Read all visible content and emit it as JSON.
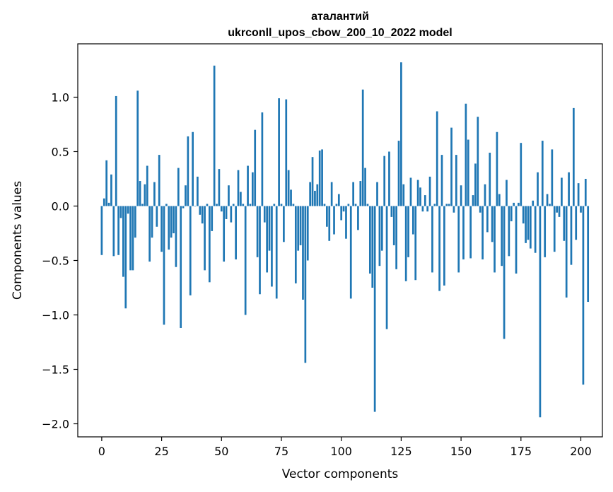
{
  "chart_data": {
    "type": "bar",
    "title": "аталантий",
    "subtitle": "ukrconll_upos_cbow_200_10_2022 model",
    "xlabel": "Vector components",
    "ylabel": "Components values",
    "xlim": [
      -10,
      209
    ],
    "ylim": [
      -2.12,
      1.49
    ],
    "x_ticks": [
      0,
      25,
      50,
      75,
      100,
      125,
      150,
      175,
      200
    ],
    "x_tick_labels": [
      "0",
      "25",
      "50",
      "75",
      "100",
      "125",
      "150",
      "175",
      "200"
    ],
    "y_ticks": [
      1.0,
      0.5,
      0.0,
      -0.5,
      -1.0,
      -1.5,
      -2.0
    ],
    "y_tick_labels": [
      "1.0",
      "0.5",
      "0.0",
      "−0.5",
      "−1.0",
      "−1.5",
      "−2.0"
    ],
    "bar_color": "#1f77b4",
    "grid": false,
    "values": [
      -0.45,
      0.07,
      0.42,
      0.03,
      0.29,
      -0.46,
      1.01,
      -0.45,
      -0.11,
      -0.65,
      -0.94,
      -0.07,
      -0.59,
      -0.59,
      -0.29,
      1.06,
      0.23,
      0.02,
      0.2,
      0.37,
      -0.51,
      -0.29,
      0.22,
      -0.19,
      0.47,
      -0.42,
      -1.09,
      0.02,
      -0.4,
      -0.29,
      -0.25,
      -0.56,
      0.35,
      -1.12,
      -0.02,
      0.19,
      0.64,
      -0.82,
      0.68,
      0.0,
      0.27,
      -0.08,
      -0.16,
      -0.59,
      0.02,
      -0.7,
      -0.23,
      1.29,
      0.02,
      0.34,
      -0.05,
      -0.51,
      -0.12,
      0.19,
      -0.15,
      0.02,
      -0.49,
      0.33,
      0.13,
      0.02,
      -1.0,
      0.37,
      0.02,
      0.31,
      0.7,
      -0.47,
      -0.81,
      0.86,
      -0.15,
      -0.61,
      -0.41,
      -0.74,
      0.02,
      -0.85,
      0.99,
      0.02,
      -0.33,
      0.98,
      0.33,
      0.15,
      0.02,
      -0.71,
      -0.41,
      -0.36,
      -0.86,
      -1.44,
      -0.5,
      0.22,
      0.45,
      0.14,
      0.2,
      0.51,
      0.52,
      0.02,
      -0.19,
      -0.32,
      0.22,
      -0.26,
      0.02,
      0.11,
      -0.13,
      -0.05,
      -0.3,
      0.02,
      -0.85,
      0.22,
      0.02,
      -0.22,
      0.23,
      1.07,
      0.35,
      0.02,
      -0.62,
      -0.75,
      -1.89,
      0.22,
      -0.55,
      -0.41,
      0.46,
      -1.13,
      0.5,
      -0.1,
      -0.36,
      -0.58,
      0.6,
      1.32,
      0.2,
      -0.69,
      -0.47,
      0.26,
      -0.26,
      -0.68,
      0.24,
      0.17,
      -0.05,
      0.1,
      -0.05,
      0.27,
      -0.61,
      0.02,
      0.87,
      -0.78,
      0.47,
      -0.73,
      0.02,
      0.02,
      0.72,
      -0.06,
      0.47,
      -0.61,
      0.19,
      -0.49,
      0.94,
      0.61,
      -0.48,
      0.1,
      0.39,
      0.82,
      -0.06,
      -0.49,
      0.2,
      -0.24,
      0.49,
      -0.33,
      -0.61,
      0.68,
      0.11,
      -0.55,
      -1.22,
      0.24,
      -0.46,
      -0.14,
      0.03,
      -0.62,
      0.03,
      0.58,
      -0.16,
      -0.34,
      -0.31,
      -0.39,
      0.05,
      -0.43,
      0.31,
      -1.94,
      0.6,
      -0.47,
      0.11,
      0.02,
      0.52,
      -0.42,
      -0.06,
      -0.1,
      0.26,
      -0.32,
      -0.84,
      0.31,
      -0.54,
      0.9,
      -0.31,
      0.21,
      -0.06,
      -1.64,
      0.25,
      -0.88
    ]
  }
}
